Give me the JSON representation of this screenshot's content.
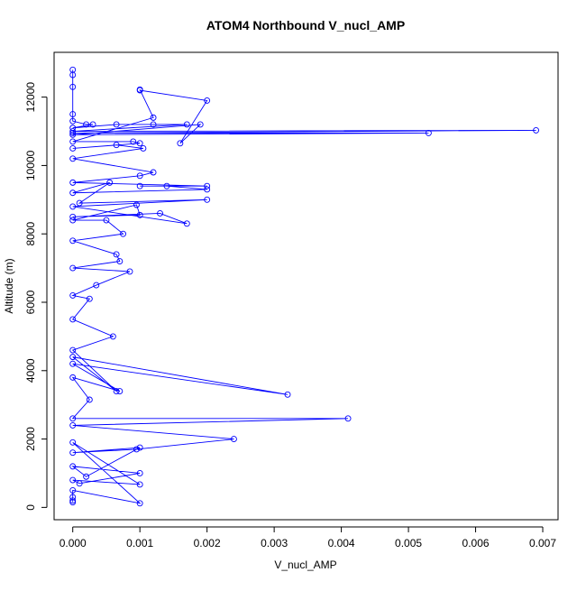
{
  "chart_data": {
    "type": "line",
    "title": "ATOM4 Northbound V_nucl_AMP",
    "x_label": "V_nucl_AMP",
    "y_label": "Altitude (m)",
    "color": "#0000ff",
    "markers": true,
    "grid": false,
    "xlim": [
      -0.000278,
      0.007228
    ],
    "xticks": [
      {
        "value": 0,
        "label": "0.000"
      },
      {
        "value": 0.001,
        "label": "0.001"
      },
      {
        "value": 0.002,
        "label": "0.002"
      },
      {
        "value": 0.003,
        "label": "0.003"
      },
      {
        "value": 0.004,
        "label": "0.004"
      },
      {
        "value": 0.005,
        "label": "0.005"
      },
      {
        "value": 0.006,
        "label": "0.006"
      },
      {
        "value": 0.007,
        "label": "0.007"
      }
    ],
    "ylim": [
      -360,
      13310
    ],
    "yticks": [
      0,
      2000,
      4000,
      6000,
      8000,
      10000,
      12000
    ],
    "x": [
      0,
      0,
      0,
      0,
      0,
      0.0002,
      0.0003,
      0,
      0.00065,
      0.0012,
      0.0017,
      0,
      0.0069,
      0,
      0.0053,
      0,
      0.0019,
      0.0016,
      0.002,
      0.001,
      0.001,
      0.0012,
      0,
      0.0009,
      0.001,
      0,
      0.00065,
      0.00105,
      0,
      0.0012,
      0.001,
      0,
      0.002,
      0.001,
      0.0014,
      0.002,
      0,
      0.00055,
      0.0001,
      0.002,
      0,
      0.0017,
      0.0013,
      0,
      0.001,
      0.00095,
      0,
      0.0005,
      0.00075,
      0,
      0.00065,
      0.0007,
      0,
      0.00085,
      0.00035,
      0,
      0.00025,
      0,
      0.0006,
      0,
      0.00065,
      0,
      0.0032,
      0,
      0.0007,
      0,
      0.00025,
      0,
      0.0041,
      0,
      0.0024,
      0.00095,
      0,
      0.001,
      0.0002,
      0,
      0.001,
      0.0001,
      0,
      0.001,
      0,
      0.001,
      0,
      0,
      0,
      0
    ],
    "values": [
      12800,
      12650,
      12300,
      11500,
      11300,
      11200,
      11200,
      11100,
      11200,
      11200,
      11200,
      11000,
      11030,
      10950,
      10950,
      10900,
      11200,
      10650,
      11900,
      12200,
      12220,
      11400,
      10700,
      10700,
      10650,
      10500,
      10600,
      10500,
      10200,
      9800,
      9700,
      9500,
      9400,
      9400,
      9400,
      9300,
      9200,
      9500,
      8900,
      9000,
      8800,
      8300,
      8600,
      8500,
      8550,
      8850,
      8400,
      8400,
      8000,
      7800,
      7400,
      7200,
      7000,
      6900,
      6500,
      6200,
      6100,
      5500,
      5000,
      4600,
      3400,
      4400,
      3300,
      4200,
      3400,
      3800,
      3150,
      2600,
      2600,
      2400,
      2000,
      1700,
      1600,
      1750,
      900,
      1200,
      1000,
      700,
      800,
      670,
      1900,
      120,
      500,
      300,
      200,
      150
    ]
  }
}
